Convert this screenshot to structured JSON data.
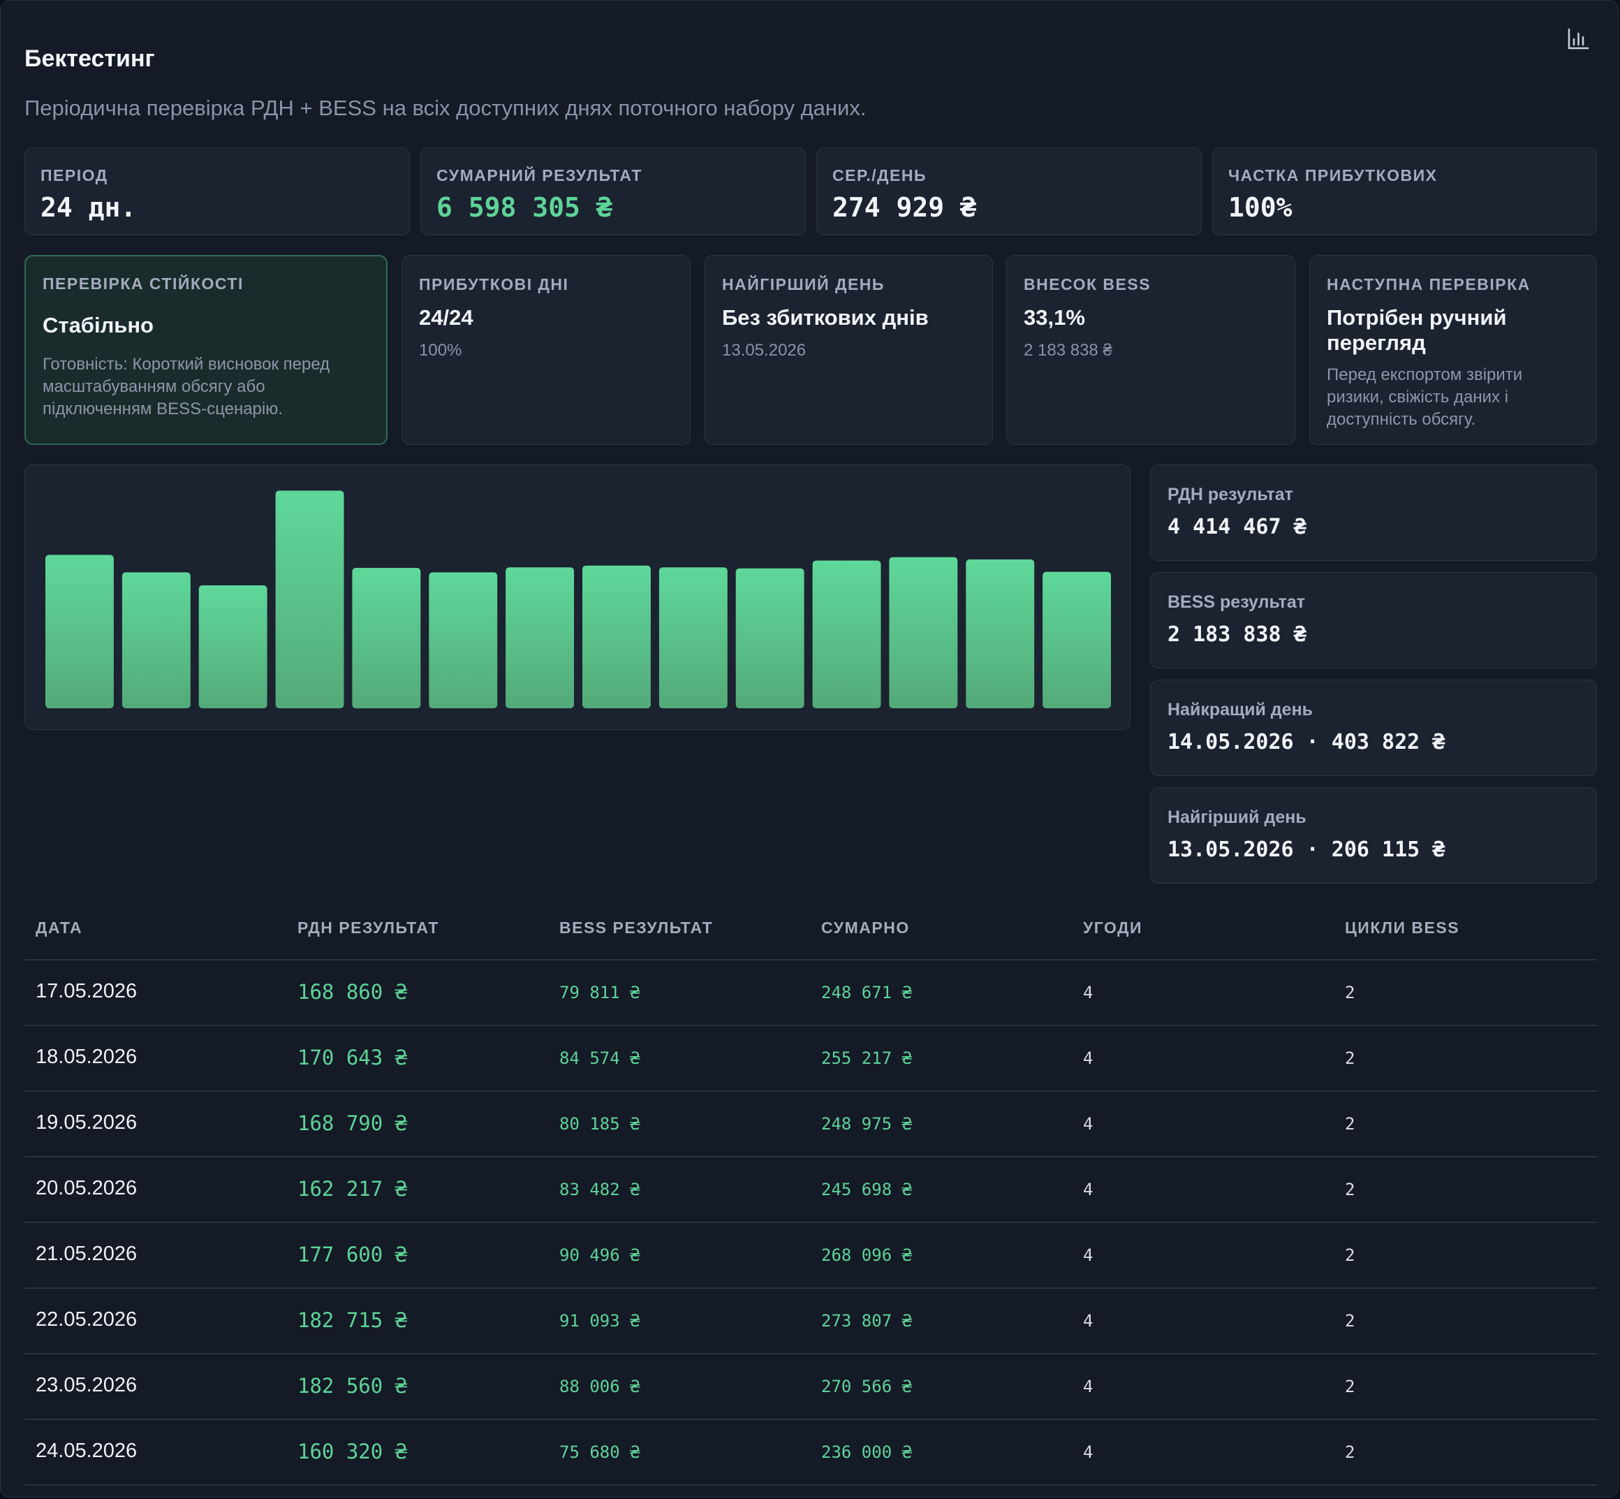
{
  "header": {
    "title": "Бектестинг",
    "subtitle": "Періодична перевірка РДН + BESS на всіх доступних днях поточного набору даних.",
    "icon": "bar-chart-icon"
  },
  "kpis": [
    {
      "label": "ПЕРІОД",
      "value": "24 дн."
    },
    {
      "label": "СУМАРНИЙ РЕЗУЛЬТАТ",
      "value": "6 598 305 ₴"
    },
    {
      "label": "СЕР./ДЕНЬ",
      "value": "274 929 ₴"
    },
    {
      "label": "ЧАСТКА ПРИБУТКОВИХ",
      "value": "100%"
    }
  ],
  "cards": [
    {
      "label": "ПЕРЕВІРКА СТІЙКОСТІ",
      "title": "Стабільно",
      "sub": "Готовність: Короткий висновок перед масштабуванням обсягу або підключенням BESS-сценарію."
    },
    {
      "label": "ПРИБУТКОВІ ДНІ",
      "title": "24/24",
      "sub": "100%"
    },
    {
      "label": "НАЙГІРШИЙ ДЕНЬ",
      "title": "Без збиткових днів",
      "sub": "13.05.2026"
    },
    {
      "label": "ВНЕСОК BESS",
      "title": "33,1%",
      "sub": "2 183 838 ₴"
    },
    {
      "label": "НАСТУПНА ПЕРЕВІРКА",
      "title": "Потрібен ручний перегляд",
      "sub": "Перед експортом звірити ризики, свіжість даних і доступність обсягу."
    }
  ],
  "side_stats": [
    {
      "label": "РДН результат",
      "value": "4 414 467 ₴"
    },
    {
      "label": "BESS результат",
      "value": "2 183 838 ₴"
    },
    {
      "label": "Найкращий день",
      "value": "14.05.2026 · 403 822 ₴"
    },
    {
      "label": "Найгірший день",
      "value": "13.05.2026 · 206 115 ₴"
    }
  ],
  "chart_data": {
    "type": "bar",
    "values": [
      272000,
      241000,
      218000,
      386000,
      249000,
      241000,
      250000,
      253000,
      250000,
      248000,
      262000,
      268000,
      264000,
      242000
    ],
    "ylim": [
      0,
      403822
    ],
    "grid": false,
    "colors": {
      "top": "#5fd89a",
      "bottom": "#54aa78"
    }
  },
  "table": {
    "columns": [
      "ДАТА",
      "РДН РЕЗУЛЬТАТ",
      "BESS РЕЗУЛЬТАТ",
      "СУМАРНО",
      "УГОДИ",
      "ЦИКЛИ BESS"
    ],
    "rows": [
      {
        "date": "17.05.2026",
        "rdn": "168 860 ₴",
        "bess": "79 811 ₴",
        "total": "248 671 ₴",
        "deals": "4",
        "cycles": "2"
      },
      {
        "date": "18.05.2026",
        "rdn": "170 643 ₴",
        "bess": "84 574 ₴",
        "total": "255 217 ₴",
        "deals": "4",
        "cycles": "2"
      },
      {
        "date": "19.05.2026",
        "rdn": "168 790 ₴",
        "bess": "80 185 ₴",
        "total": "248 975 ₴",
        "deals": "4",
        "cycles": "2"
      },
      {
        "date": "20.05.2026",
        "rdn": "162 217 ₴",
        "bess": "83 482 ₴",
        "total": "245 698 ₴",
        "deals": "4",
        "cycles": "2"
      },
      {
        "date": "21.05.2026",
        "rdn": "177 600 ₴",
        "bess": "90 496 ₴",
        "total": "268 096 ₴",
        "deals": "4",
        "cycles": "2"
      },
      {
        "date": "22.05.2026",
        "rdn": "182 715 ₴",
        "bess": "91 093 ₴",
        "total": "273 807 ₴",
        "deals": "4",
        "cycles": "2"
      },
      {
        "date": "23.05.2026",
        "rdn": "182 560 ₴",
        "bess": "88 006 ₴",
        "total": "270 566 ₴",
        "deals": "4",
        "cycles": "2"
      },
      {
        "date": "24.05.2026",
        "rdn": "160 320 ₴",
        "bess": "75 680 ₴",
        "total": "236 000 ₴",
        "deals": "4",
        "cycles": "2"
      }
    ]
  },
  "colors": {
    "accent": "#5fd398",
    "panel": "#141a26",
    "card": "#1b2230"
  }
}
